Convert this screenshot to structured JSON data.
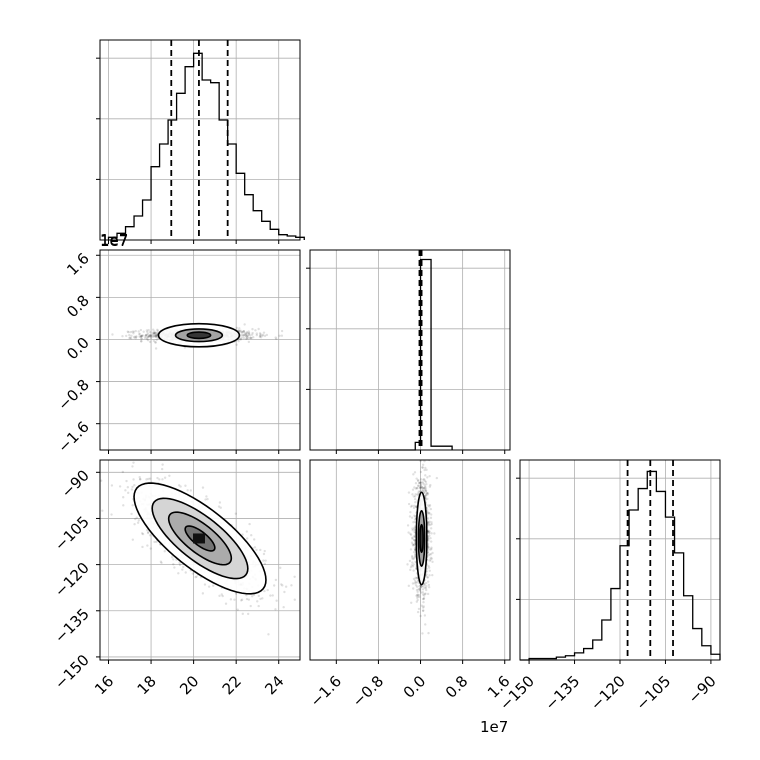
{
  "chart_data": {
    "type": "corner",
    "grid": true,
    "dashed_quantiles": [
      0.16,
      0.5,
      0.84
    ],
    "panels": [
      {
        "id": "hist-p1",
        "type": "histogram",
        "xlim": [
          15.6,
          25.0
        ],
        "quantiles": [
          18.95,
          20.25,
          21.6
        ],
        "bin_edges": [
          16.0,
          16.4,
          16.8,
          17.2,
          17.6,
          18.0,
          18.4,
          18.8,
          19.2,
          19.6,
          20.0,
          20.4,
          20.8,
          21.2,
          21.6,
          22.0,
          22.4,
          22.8,
          23.2,
          23.6,
          24.0,
          24.4,
          24.8,
          25.2
        ],
        "counts": [
          2,
          5,
          10,
          18,
          30,
          55,
          72,
          90,
          110,
          130,
          140,
          120,
          118,
          90,
          72,
          50,
          34,
          22,
          14,
          8,
          4,
          3,
          2
        ],
        "ymax": 150,
        "x_offset_label": "1e7"
      },
      {
        "id": "scatter-p1-p2",
        "type": "density2d",
        "xlim": [
          15.6,
          25.0
        ],
        "ylim": [
          -2.1,
          1.7
        ],
        "xticks": [
          16,
          18,
          20,
          22,
          24
        ],
        "yticks": [
          -1.6,
          -0.8,
          0.0,
          0.8,
          1.6
        ],
        "ytick_labels": [
          "−1.6",
          "−0.8",
          "0.0",
          "0.8",
          "1.6"
        ],
        "center": [
          20.25,
          0.08
        ],
        "spread": [
          1.3,
          0.06
        ],
        "corr": 0.0,
        "contours": [
          {
            "rx": 1.9,
            "ry": 0.22
          },
          {
            "rx": 1.1,
            "ry": 0.12
          },
          {
            "rx": 0.55,
            "ry": 0.06
          }
        ],
        "x_offset_label": "1e7"
      },
      {
        "id": "hist-p2",
        "type": "histogram",
        "xlim": [
          -2.1,
          1.7
        ],
        "quantiles": [
          -0.02,
          0.0,
          0.02
        ],
        "bin_edges": [
          -1.6,
          -1.2,
          -0.8,
          -0.4,
          -0.1,
          0.0,
          0.2,
          0.6
        ],
        "counts": [
          0,
          0,
          0,
          0,
          4,
          100,
          2
        ],
        "ymax": 105
      },
      {
        "id": "scatter-p1-p3",
        "type": "density2d",
        "xlim": [
          15.6,
          25.0
        ],
        "ylim": [
          -151,
          -86
        ],
        "xticks": [
          16,
          18,
          20,
          22,
          24
        ],
        "yticks": [
          -150,
          -135,
          -120,
          -105,
          -90
        ],
        "ytick_labels": [
          "−150",
          "−135",
          "−120",
          "−105",
          "−90"
        ],
        "center": [
          20.3,
          -111.5
        ],
        "spread": [
          1.55,
          9.0
        ],
        "corr": -0.75,
        "contours": [
          {
            "level": 2.0
          },
          {
            "level": 1.45
          },
          {
            "level": 0.95
          },
          {
            "level": 0.45
          }
        ]
      },
      {
        "id": "scatter-p2-p3",
        "type": "density2d",
        "xlim": [
          -2.1,
          1.7
        ],
        "ylim": [
          -151,
          -86
        ],
        "xticks": [
          -1.6,
          -0.8,
          0.0,
          0.8,
          1.6
        ],
        "xtick_labels": [
          "−1.6",
          "−0.8",
          "0.0",
          "0.8",
          "1.6"
        ],
        "center": [
          0.02,
          -111.5
        ],
        "spread": [
          0.08,
          9.0
        ],
        "corr": 0.0,
        "contours": [
          {
            "rx": 0.1,
            "ry": 15
          },
          {
            "rx": 0.06,
            "ry": 9
          },
          {
            "rx": 0.03,
            "ry": 4.5
          }
        ],
        "x_offset_label": "1e7"
      },
      {
        "id": "hist-p3",
        "type": "histogram",
        "xlim": [
          -153,
          -87
        ],
        "xticks": [
          -150,
          -135,
          -120,
          -105,
          -90
        ],
        "xtick_labels": [
          "−150",
          "−135",
          "−120",
          "−105",
          "−90"
        ],
        "quantiles": [
          -117.5,
          -110.0,
          -102.5
        ],
        "bin_edges": [
          -153,
          -150,
          -147,
          -144,
          -141,
          -138,
          -135,
          -132,
          -129,
          -126,
          -123,
          -120,
          -117,
          -114,
          -111,
          -108,
          -105,
          -102,
          -99,
          -96,
          -93,
          -90,
          -87
        ],
        "counts": [
          0,
          1,
          1,
          1,
          2,
          3,
          5,
          8,
          14,
          28,
          50,
          80,
          105,
          120,
          132,
          118,
          100,
          75,
          45,
          22,
          10,
          4
        ],
        "ymax": 140
      }
    ]
  }
}
